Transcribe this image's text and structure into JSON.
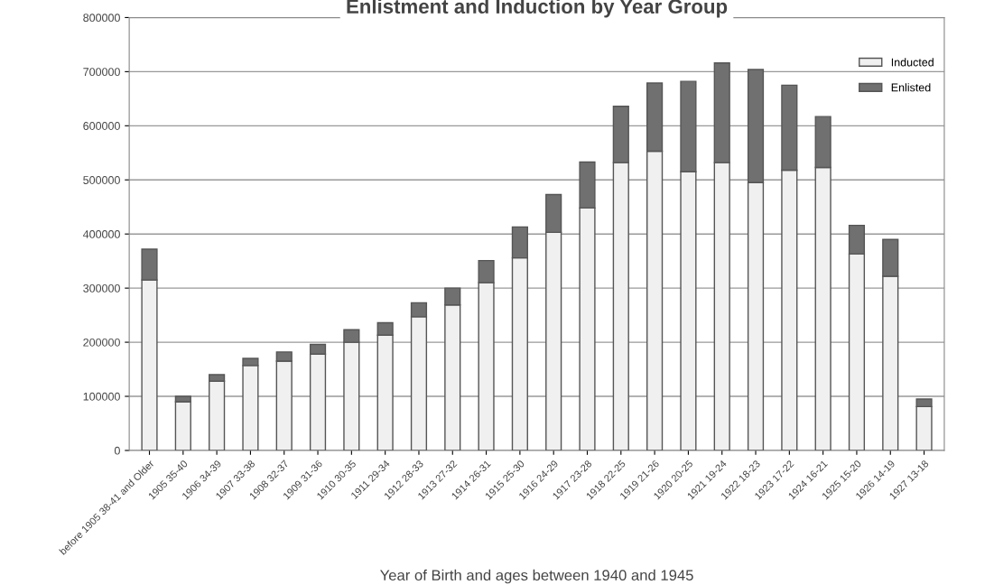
{
  "chart_data": {
    "type": "bar",
    "title": "Enlistment and Induction by Year Group",
    "xlabel": "Year of Birth and ages between 1940 and 1945",
    "categories": [
      "before 1905 38-41 and Older",
      "1905 35-40",
      "1906 34-39",
      "1907 33-38",
      "1908 32-37",
      "1909 31-36",
      "1910 30-35",
      "1911 29-34",
      "1912 28-33",
      "1913 27-32",
      "1914 26-31",
      "1915 25-30",
      "1916 24-29",
      "1917 23-28",
      "1918 22-25",
      "1919 21-26",
      "1920 20-25",
      "1921 19-24",
      "1922 18-23",
      "1923 17-22",
      "1924 16-21",
      "1925 15-20",
      "1926 14-19",
      "1927 13-18"
    ],
    "stacked": true,
    "series": [
      {
        "name": "Inducted",
        "color": "#f0f0f0",
        "values": [
          315000,
          90000,
          128000,
          157000,
          165000,
          178000,
          200000,
          213000,
          247000,
          269000,
          310000,
          356000,
          403000,
          448000,
          532000,
          553000,
          515000,
          532000,
          495000,
          518000,
          523000,
          363000,
          322000,
          81000
        ]
      },
      {
        "name": "Enlisted",
        "color": "#707070",
        "values": [
          57000,
          10000,
          12000,
          13000,
          17000,
          18000,
          23000,
          23000,
          26000,
          31000,
          41000,
          57000,
          70000,
          85000,
          104000,
          126000,
          167000,
          184000,
          209000,
          157000,
          94000,
          53000,
          68000,
          14000
        ]
      }
    ],
    "ylim": [
      0,
      800000
    ],
    "yticks": [
      0,
      100000,
      200000,
      300000,
      400000,
      500000,
      600000,
      700000,
      800000
    ],
    "grid": "y",
    "legend": "top right"
  }
}
